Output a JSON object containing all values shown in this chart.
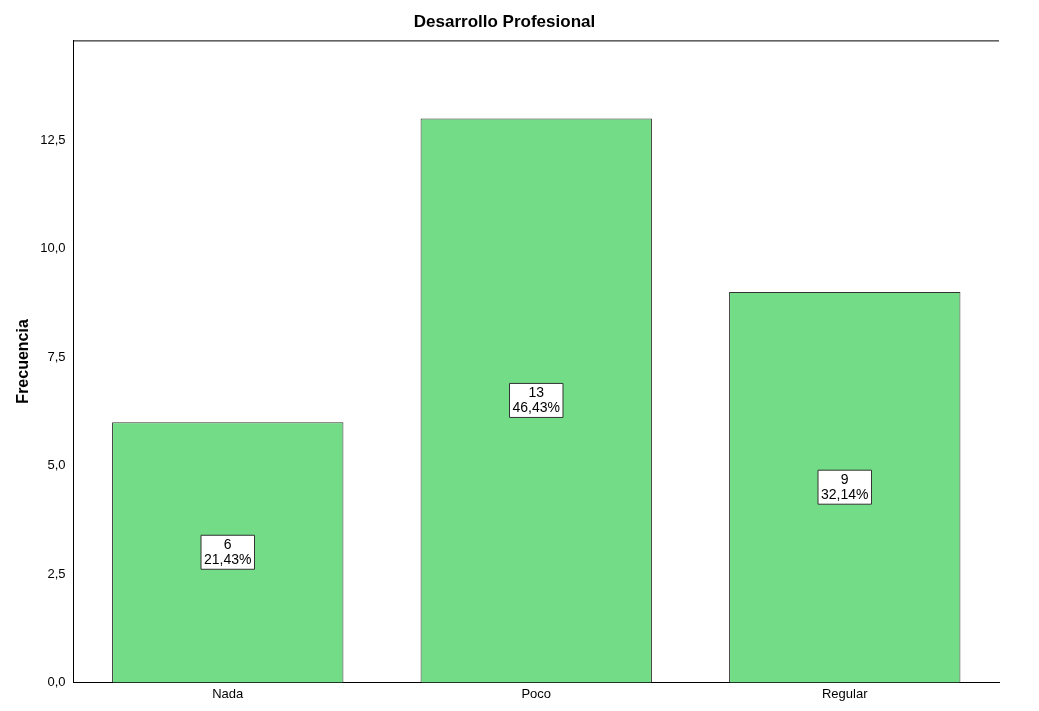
{
  "chart_data": {
    "type": "bar",
    "title": "Desarrollo Profesional",
    "ylabel": "Frecuencia",
    "categories": [
      "Nada",
      "Poco",
      "Regular"
    ],
    "values": [
      6,
      13,
      9
    ],
    "value_labels": [
      "6\n21,43%",
      "13\n46,43%",
      "9\n32,14%"
    ],
    "color": "#72dd86",
    "ylim": [
      0,
      14.8
    ],
    "yticks": [
      {
        "value": 0,
        "label": "0,0"
      },
      {
        "value": 2.5,
        "label": "2,5"
      },
      {
        "value": 5,
        "label": "5,0"
      },
      {
        "value": 7.5,
        "label": "7,5"
      },
      {
        "value": 10,
        "label": "10,0"
      },
      {
        "value": 12.5,
        "label": "12,5"
      }
    ],
    "grid": false,
    "legend": false
  }
}
